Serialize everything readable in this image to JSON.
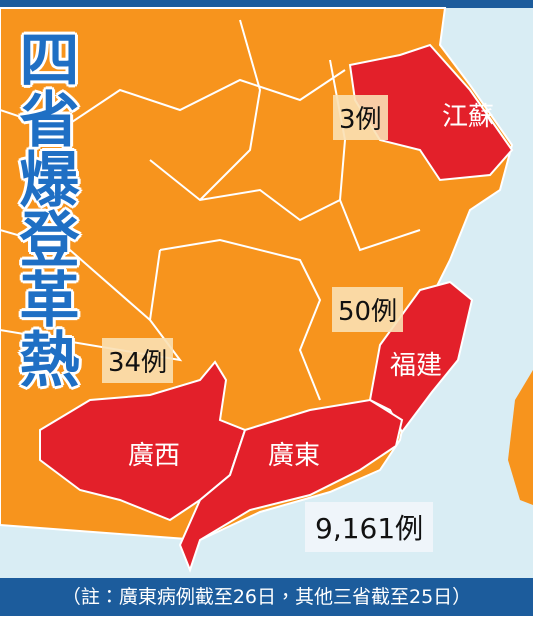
{
  "title": "四省爆登革熱",
  "regions": [
    {
      "name": "江蘇",
      "cases": "3例"
    },
    {
      "name": "福建",
      "cases": "50例"
    },
    {
      "name": "廣西",
      "cases": "34例"
    },
    {
      "name": "廣東",
      "cases": "9,161例"
    }
  ],
  "note": "（註：廣東病例截至26日，其他三省截至25日）"
}
